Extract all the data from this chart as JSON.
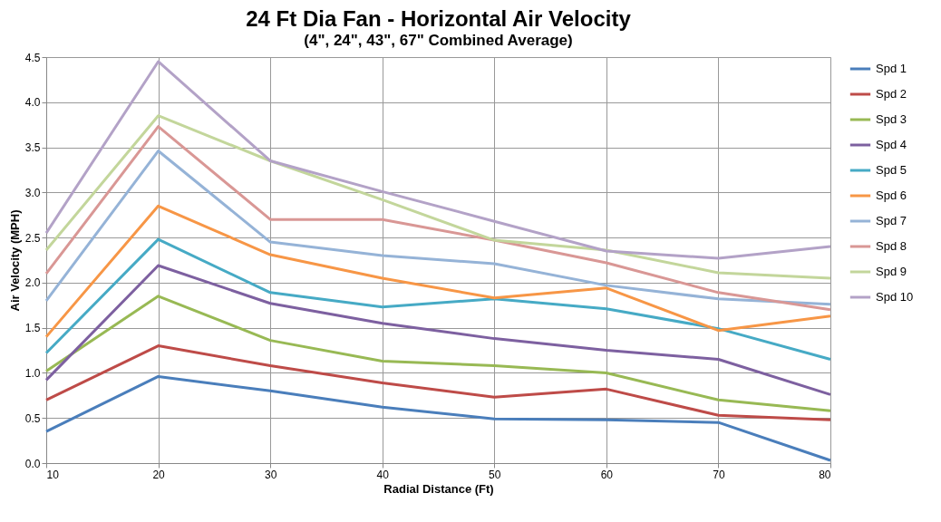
{
  "chart_data": {
    "type": "line",
    "title": "24 Ft Dia Fan - Horizontal Air Velocity",
    "subtitle": "(4\", 24\", 43\", 67\" Combined Average)",
    "xlabel": "Radial Distance (Ft)",
    "ylabel": "Air Velocity (MPH)",
    "x": [
      10,
      20,
      30,
      40,
      50,
      60,
      70,
      80
    ],
    "series": [
      {
        "name": "Spd 1",
        "color": "#4a7ebb",
        "values": [
          0.35,
          0.96,
          0.8,
          0.62,
          0.49,
          0.48,
          0.45,
          0.03
        ]
      },
      {
        "name": "Spd 2",
        "color": "#be4b48",
        "values": [
          0.7,
          1.3,
          1.08,
          0.89,
          0.73,
          0.82,
          0.53,
          0.48
        ]
      },
      {
        "name": "Spd 3",
        "color": "#98b954",
        "values": [
          1.02,
          1.85,
          1.36,
          1.13,
          1.08,
          1.0,
          0.7,
          0.58
        ]
      },
      {
        "name": "Spd 4",
        "color": "#7d60a0",
        "values": [
          0.92,
          2.19,
          1.77,
          1.55,
          1.38,
          1.25,
          1.15,
          0.76
        ]
      },
      {
        "name": "Spd 5",
        "color": "#46aac5",
        "values": [
          1.22,
          2.48,
          1.89,
          1.73,
          1.82,
          1.71,
          1.49,
          1.15
        ]
      },
      {
        "name": "Spd 6",
        "color": "#f79646",
        "values": [
          1.4,
          2.85,
          2.31,
          2.05,
          1.83,
          1.94,
          1.47,
          1.63
        ]
      },
      {
        "name": "Spd 7",
        "color": "#95b3d7",
        "values": [
          1.8,
          3.46,
          2.45,
          2.3,
          2.21,
          1.97,
          1.82,
          1.76
        ]
      },
      {
        "name": "Spd 8",
        "color": "#d99795",
        "values": [
          2.1,
          3.73,
          2.7,
          2.7,
          2.47,
          2.22,
          1.89,
          1.7
        ]
      },
      {
        "name": "Spd 9",
        "color": "#c3d69b",
        "values": [
          2.36,
          3.85,
          3.35,
          2.92,
          2.47,
          2.36,
          2.11,
          2.05
        ]
      },
      {
        "name": "Spd 10",
        "color": "#b3a2c7",
        "values": [
          2.55,
          4.45,
          3.35,
          3.01,
          2.68,
          2.35,
          2.27,
          2.4
        ]
      }
    ],
    "xlim": [
      10,
      80
    ],
    "xticks": [
      10,
      20,
      30,
      40,
      50,
      60,
      70,
      80
    ],
    "ylim": [
      0,
      4.5
    ],
    "yticks": [
      {
        "value": 0,
        "label": "0.0"
      },
      0.5,
      {
        "value": 1,
        "label": "1.0"
      },
      1.5,
      {
        "value": 2,
        "label": "2.0"
      },
      2.5,
      {
        "value": 3,
        "label": "3.0"
      },
      3.5,
      {
        "value": 4,
        "label": "4.0"
      },
      4.5
    ],
    "grid": true,
    "legend": "right",
    "marker": "none",
    "line_style": "solid"
  }
}
